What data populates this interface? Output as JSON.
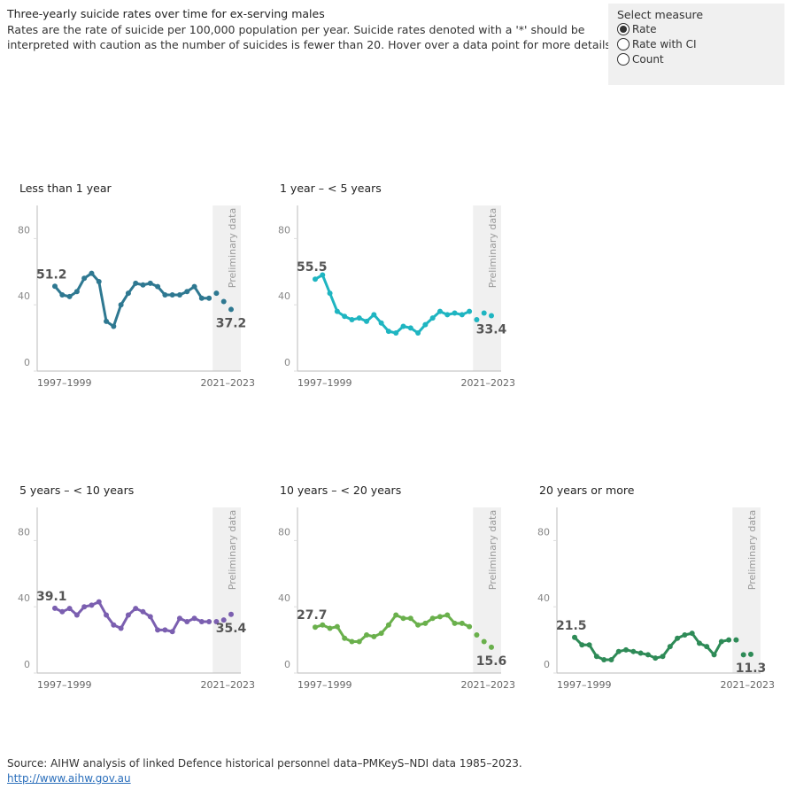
{
  "header": {
    "title": "Three-yearly suicide rates over time for ex-serving males",
    "subtitle_lines": [
      "Rates are the rate of suicide per 100,000 population per year. Suicide rates denoted with a '*' should be",
      "interpreted with caution as the number of suicides is fewer than 20. Hover over a data point for more details."
    ]
  },
  "controls": {
    "label": "Select measure",
    "options": [
      "Rate",
      "Rate with CI",
      "Count"
    ],
    "selected": "Rate"
  },
  "footer": {
    "source": "Source: AIHW analysis of linked Defence historical personnel data–PMKeyS–NDI data 1985–2023.",
    "link": "http://www.aihw.gov.au"
  },
  "chart_data": [
    {
      "type": "line",
      "title": "Less than 1 year",
      "color": "#2e7891",
      "band_label": "Preliminary data",
      "categories": [
        "1997–1999",
        null,
        null,
        null,
        null,
        null,
        null,
        null,
        null,
        null,
        null,
        null,
        null,
        null,
        null,
        null,
        null,
        null,
        null,
        null,
        null,
        null,
        null,
        null,
        "2021–2023"
      ],
      "values": [
        51.2,
        46,
        45,
        48,
        56,
        59,
        54,
        30,
        27,
        40,
        47,
        53,
        52,
        53,
        51,
        46,
        46,
        46,
        48,
        51,
        44,
        44,
        null,
        null,
        null
      ],
      "preliminary_values": [
        null,
        null,
        null,
        null,
        null,
        null,
        null,
        null,
        null,
        null,
        null,
        null,
        null,
        null,
        null,
        null,
        null,
        null,
        null,
        null,
        null,
        null,
        47,
        42,
        37.2
      ],
      "ylim": [
        0,
        100
      ],
      "yticks": [
        0,
        40,
        80
      ]
    },
    {
      "type": "line",
      "title": "1 year – < 5 years",
      "color": "#1fb5c1",
      "band_label": "Preliminary data",
      "categories": [
        "1997–1999",
        null,
        null,
        null,
        null,
        null,
        null,
        null,
        null,
        null,
        null,
        null,
        null,
        null,
        null,
        null,
        null,
        null,
        null,
        null,
        null,
        null,
        null,
        null,
        "2021–2023"
      ],
      "values": [
        55.5,
        58,
        47,
        36,
        33,
        31,
        32,
        30,
        34,
        29,
        24,
        23,
        27,
        26,
        23,
        28,
        32,
        36,
        34,
        35,
        34,
        36,
        null,
        null,
        null
      ],
      "preliminary_values": [
        null,
        null,
        null,
        null,
        null,
        null,
        null,
        null,
        null,
        null,
        null,
        null,
        null,
        null,
        null,
        null,
        null,
        null,
        null,
        null,
        null,
        null,
        31,
        35,
        33.4
      ],
      "ylim": [
        0,
        100
      ],
      "yticks": [
        0,
        40,
        80
      ]
    },
    {
      "type": "line",
      "title": "5 years – < 10 years",
      "color": "#7b5fb0",
      "band_label": "Preliminary data",
      "categories": [
        "1997–1999",
        null,
        null,
        null,
        null,
        null,
        null,
        null,
        null,
        null,
        null,
        null,
        null,
        null,
        null,
        null,
        null,
        null,
        null,
        null,
        null,
        null,
        null,
        null,
        "2021–2023"
      ],
      "values": [
        39.1,
        37,
        39,
        35,
        40,
        41,
        43,
        35,
        29,
        27,
        35,
        39,
        37,
        34,
        26,
        26,
        25,
        33,
        31,
        33,
        31,
        31,
        null,
        null,
        null
      ],
      "preliminary_values": [
        null,
        null,
        null,
        null,
        null,
        null,
        null,
        null,
        null,
        null,
        null,
        null,
        null,
        null,
        null,
        null,
        null,
        null,
        null,
        null,
        null,
        null,
        31,
        32,
        35.4
      ],
      "ylim": [
        0,
        100
      ],
      "yticks": [
        0,
        40,
        80
      ]
    },
    {
      "type": "line",
      "title": "10 years – < 20 years",
      "color": "#6ab04c",
      "band_label": "Preliminary data",
      "categories": [
        "1997–1999",
        null,
        null,
        null,
        null,
        null,
        null,
        null,
        null,
        null,
        null,
        null,
        null,
        null,
        null,
        null,
        null,
        null,
        null,
        null,
        null,
        null,
        null,
        null,
        "2021–2023"
      ],
      "values": [
        27.7,
        29,
        27,
        28,
        21,
        19,
        19,
        23,
        22,
        24,
        29,
        35,
        33,
        33,
        29,
        30,
        33,
        34,
        35,
        30,
        30,
        28,
        null,
        null,
        null
      ],
      "preliminary_values": [
        null,
        null,
        null,
        null,
        null,
        null,
        null,
        null,
        null,
        null,
        null,
        null,
        null,
        null,
        null,
        null,
        null,
        null,
        null,
        null,
        null,
        null,
        23,
        19,
        15.6
      ],
      "ylim": [
        0,
        100
      ],
      "yticks": [
        0,
        40,
        80
      ]
    },
    {
      "type": "line",
      "title": "20 years or more",
      "color": "#2e8b57",
      "band_label": "Preliminary data",
      "categories": [
        "1997–1999",
        null,
        null,
        null,
        null,
        null,
        null,
        null,
        null,
        null,
        null,
        null,
        null,
        null,
        null,
        null,
        null,
        null,
        null,
        null,
        null,
        null,
        null,
        null,
        "2021–2023"
      ],
      "values": [
        21.5,
        17,
        17,
        10,
        8,
        8,
        13,
        14,
        13,
        12,
        11,
        9,
        10,
        16,
        21,
        23,
        24,
        18,
        16,
        11,
        19,
        20,
        null,
        null,
        null
      ],
      "preliminary_values": [
        null,
        null,
        null,
        null,
        null,
        null,
        null,
        null,
        null,
        null,
        null,
        null,
        null,
        null,
        null,
        null,
        null,
        null,
        null,
        null,
        null,
        null,
        20,
        11,
        11.3
      ],
      "ylim": [
        0,
        100
      ],
      "yticks": [
        0,
        40,
        80
      ]
    }
  ]
}
